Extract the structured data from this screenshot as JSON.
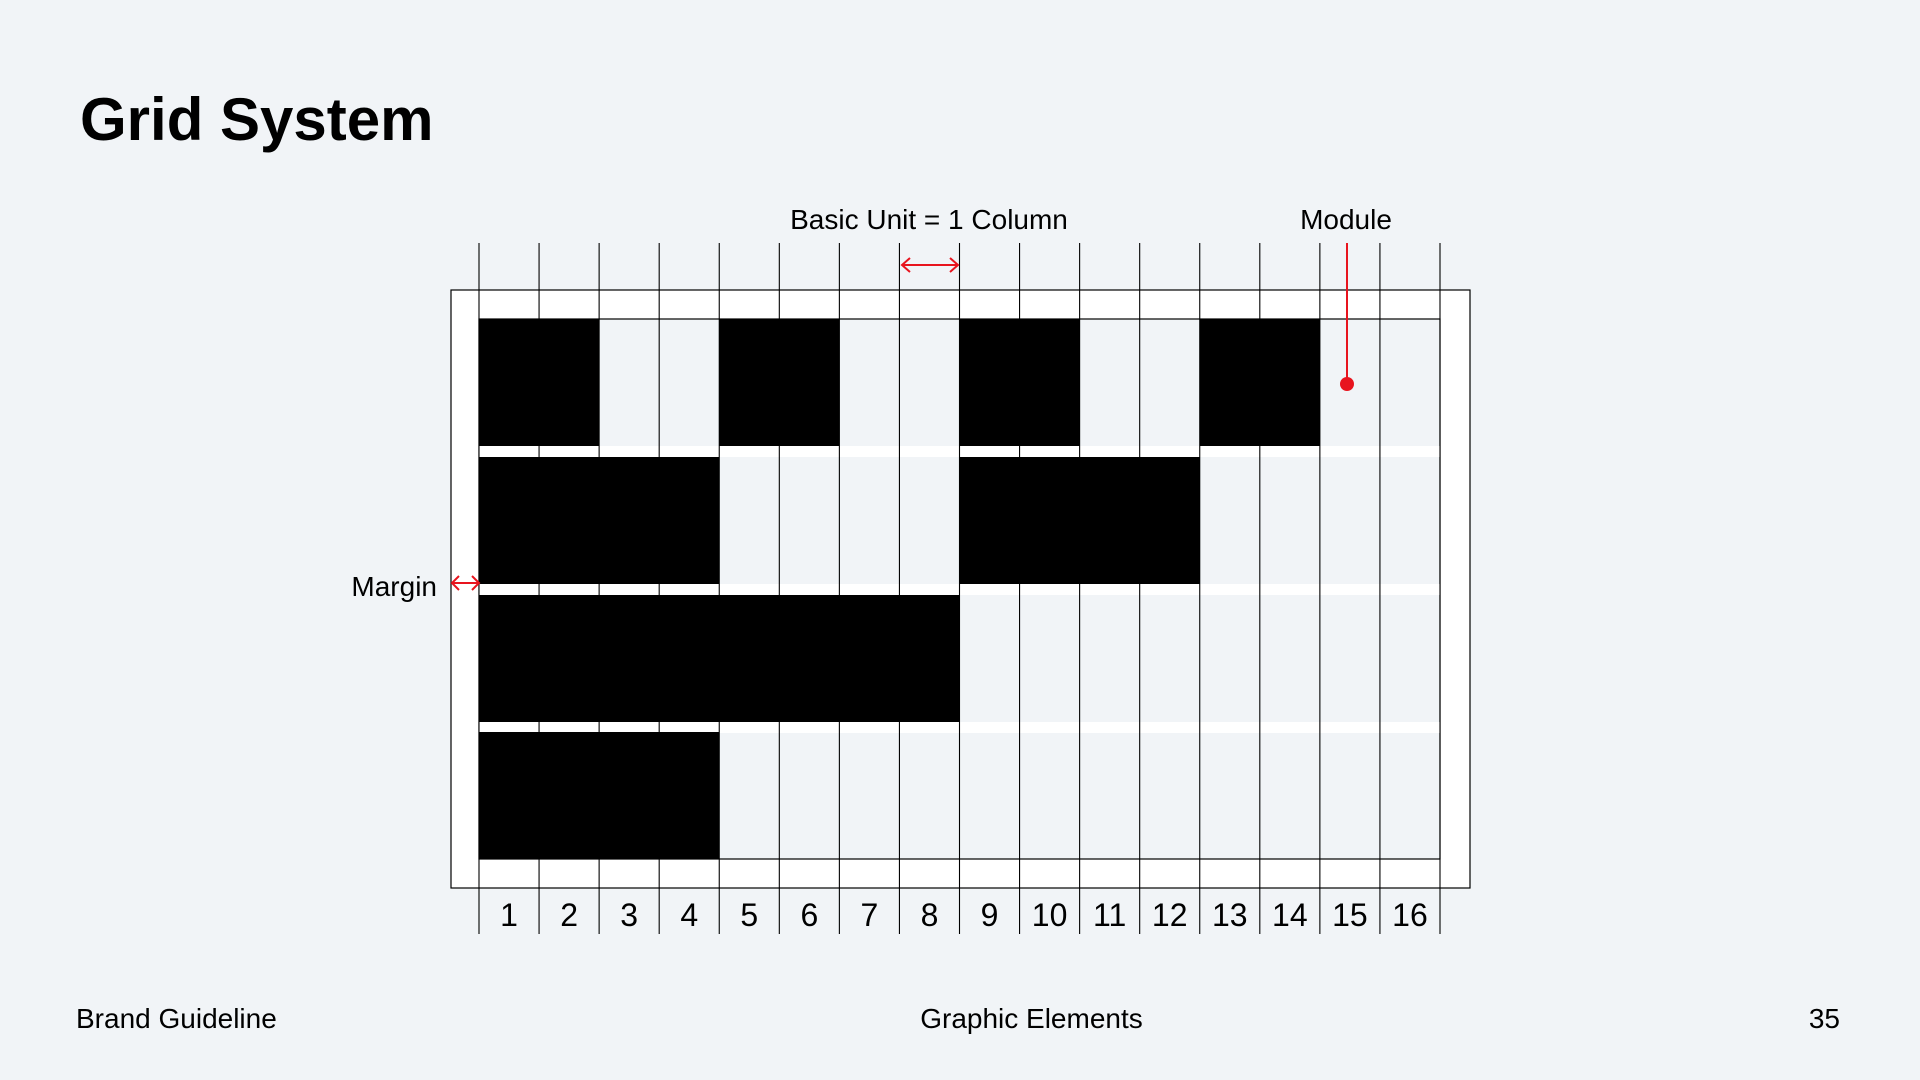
{
  "page": {
    "title": "Grid System"
  },
  "diagram": {
    "labels": {
      "basic_unit": "Basic Unit = 1 Column",
      "module": "Module",
      "margin": "Margin"
    },
    "columns": [
      "1",
      "2",
      "3",
      "4",
      "5",
      "6",
      "7",
      "8",
      "9",
      "10",
      "11",
      "12",
      "13",
      "14",
      "15",
      "16"
    ],
    "rows": 4,
    "blocks": [
      {
        "row": 1,
        "start_col": 1,
        "span": 2
      },
      {
        "row": 1,
        "start_col": 5,
        "span": 2
      },
      {
        "row": 1,
        "start_col": 9,
        "span": 2
      },
      {
        "row": 1,
        "start_col": 13,
        "span": 2
      },
      {
        "row": 2,
        "start_col": 1,
        "span": 4
      },
      {
        "row": 2,
        "start_col": 9,
        "span": 4
      },
      {
        "row": 3,
        "start_col": 1,
        "span": 8
      },
      {
        "row": 4,
        "start_col": 1,
        "span": 4
      }
    ],
    "colors": {
      "block": "#000000",
      "annotation": "#E8141E",
      "background": "#F1F4F7",
      "frame": "#FFFFFF"
    }
  },
  "footer": {
    "left": "Brand Guideline",
    "center": "Graphic Elements",
    "right": "35"
  }
}
